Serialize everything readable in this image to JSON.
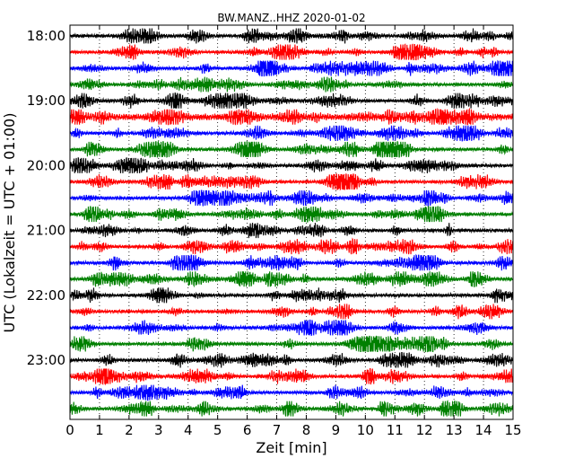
{
  "chart_data": {
    "type": "line",
    "chart_kind": "seismogram-dayplot",
    "title": "BW.MANZ..HHZ 2020-01-02",
    "xlabel": "Zeit  [min]",
    "ylabel": "UTC (Lokalzeit = UTC + 01:00)",
    "xlim": [
      0,
      15
    ],
    "x_ticks": [
      "0",
      "1",
      "2",
      "3",
      "4",
      "5",
      "6",
      "7",
      "8",
      "9",
      "10",
      "11",
      "12",
      "13",
      "14",
      "15"
    ],
    "y_ticks": [
      "18:00",
      "19:00",
      "20:00",
      "21:00",
      "22:00",
      "23:00"
    ],
    "grid": "vertical dotted at each minute",
    "trace_minutes": 15,
    "trace_colors": [
      "#000000",
      "#ff0000",
      "#0000ff",
      "#008000"
    ],
    "traces": [
      {
        "start": "18:00",
        "color": "#000000"
      },
      {
        "start": "18:15",
        "color": "#ff0000"
      },
      {
        "start": "18:30",
        "color": "#0000ff"
      },
      {
        "start": "18:45",
        "color": "#008000"
      },
      {
        "start": "19:00",
        "color": "#000000"
      },
      {
        "start": "19:15",
        "color": "#ff0000"
      },
      {
        "start": "19:30",
        "color": "#0000ff"
      },
      {
        "start": "19:45",
        "color": "#008000"
      },
      {
        "start": "20:00",
        "color": "#000000"
      },
      {
        "start": "20:15",
        "color": "#ff0000"
      },
      {
        "start": "20:30",
        "color": "#0000ff"
      },
      {
        "start": "20:45",
        "color": "#008000"
      },
      {
        "start": "21:00",
        "color": "#000000"
      },
      {
        "start": "21:15",
        "color": "#ff0000"
      },
      {
        "start": "21:30",
        "color": "#0000ff"
      },
      {
        "start": "21:45",
        "color": "#008000"
      },
      {
        "start": "22:00",
        "color": "#000000"
      },
      {
        "start": "22:15",
        "color": "#ff0000"
      },
      {
        "start": "22:30",
        "color": "#0000ff"
      },
      {
        "start": "22:45",
        "color": "#008000"
      },
      {
        "start": "23:00",
        "color": "#000000"
      },
      {
        "start": "23:15",
        "color": "#ff0000"
      },
      {
        "start": "23:30",
        "color": "#0000ff"
      },
      {
        "start": "23:45",
        "color": "#008000"
      }
    ]
  }
}
